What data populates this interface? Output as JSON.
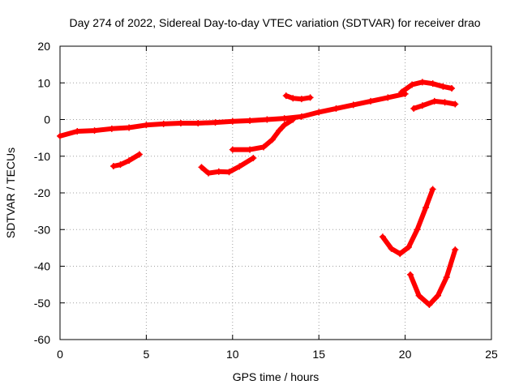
{
  "chart_data": {
    "type": "scatter",
    "title": "Day 274 of 2022, Sidereal Day-to-day VTEC variation (SDTVAR) for receiver drao",
    "xlabel": "GPS time / hours",
    "ylabel": "SDTVAR / TECUs",
    "xlim": [
      0,
      25
    ],
    "ylim": [
      -60,
      20
    ],
    "xticks": [
      0,
      5,
      10,
      15,
      20,
      25
    ],
    "yticks": [
      -60,
      -50,
      -40,
      -30,
      -20,
      -10,
      0,
      10,
      20
    ],
    "xtick_labels": [
      "0",
      "5",
      "10",
      "15",
      "20",
      "25"
    ],
    "ytick_labels": [
      "-60",
      "-50",
      "-40",
      "-30",
      "-20",
      "-10",
      "0",
      "10",
      "20"
    ],
    "grid": true,
    "color": "#ff0000",
    "series": [
      {
        "name": "main-track",
        "points": [
          [
            0,
            -4.5
          ],
          [
            1,
            -3.2
          ],
          [
            2,
            -3.0
          ],
          [
            3,
            -2.5
          ],
          [
            4,
            -2.2
          ],
          [
            5,
            -1.5
          ],
          [
            6,
            -1.2
          ],
          [
            7,
            -1.0
          ],
          [
            8,
            -1.0
          ],
          [
            9,
            -0.8
          ],
          [
            10,
            -0.5
          ],
          [
            11,
            -0.3
          ],
          [
            12,
            0
          ],
          [
            13,
            0.3
          ],
          [
            14,
            0.8
          ],
          [
            15,
            2.0
          ],
          [
            16,
            3
          ],
          [
            17,
            4
          ],
          [
            18,
            5
          ],
          [
            19,
            6
          ],
          [
            20,
            7
          ]
        ]
      },
      {
        "name": "arc-early",
        "points": [
          [
            3.1,
            -12.7
          ],
          [
            3.5,
            -12.3
          ],
          [
            4,
            -11.2
          ],
          [
            4.6,
            -9.5
          ]
        ]
      },
      {
        "name": "arc-morning",
        "points": [
          [
            8.2,
            -13.0
          ],
          [
            8.6,
            -14.6
          ],
          [
            9.2,
            -14.2
          ],
          [
            9.8,
            -14.3
          ],
          [
            10.4,
            -12.8
          ],
          [
            11.2,
            -10.5
          ]
        ]
      },
      {
        "name": "arc-climb",
        "points": [
          [
            10,
            -8.2
          ],
          [
            11,
            -8.2
          ],
          [
            11.8,
            -7.5
          ],
          [
            12.3,
            -5.5
          ],
          [
            12.7,
            -3
          ],
          [
            13,
            -1.5
          ],
          [
            13.5,
            0
          ]
        ]
      },
      {
        "name": "arc-13h",
        "points": [
          [
            13.1,
            6.5
          ],
          [
            13.5,
            5.8
          ],
          [
            14,
            5.6
          ],
          [
            14.5,
            6.0
          ]
        ]
      },
      {
        "name": "arc-peak",
        "points": [
          [
            19.8,
            7.5
          ],
          [
            20.4,
            9.5
          ],
          [
            21,
            10.2
          ],
          [
            21.6,
            9.8
          ],
          [
            22.2,
            9.0
          ],
          [
            22.7,
            8.5
          ]
        ]
      },
      {
        "name": "arc-late",
        "points": [
          [
            20.5,
            3.0
          ],
          [
            21,
            3.8
          ],
          [
            21.7,
            5.0
          ],
          [
            22.3,
            4.7
          ],
          [
            22.9,
            4.2
          ]
        ]
      },
      {
        "name": "dip-1",
        "points": [
          [
            18.7,
            -32
          ],
          [
            19.2,
            -35.2
          ],
          [
            19.7,
            -36.6
          ],
          [
            20.2,
            -34.8
          ],
          [
            20.7,
            -30
          ],
          [
            21.2,
            -24
          ],
          [
            21.6,
            -19
          ]
        ]
      },
      {
        "name": "dip-2",
        "points": [
          [
            20.3,
            -42.3
          ],
          [
            20.8,
            -48
          ],
          [
            21.4,
            -50.5
          ],
          [
            21.9,
            -48
          ],
          [
            22.4,
            -43
          ],
          [
            22.9,
            -35.5
          ]
        ]
      }
    ]
  }
}
